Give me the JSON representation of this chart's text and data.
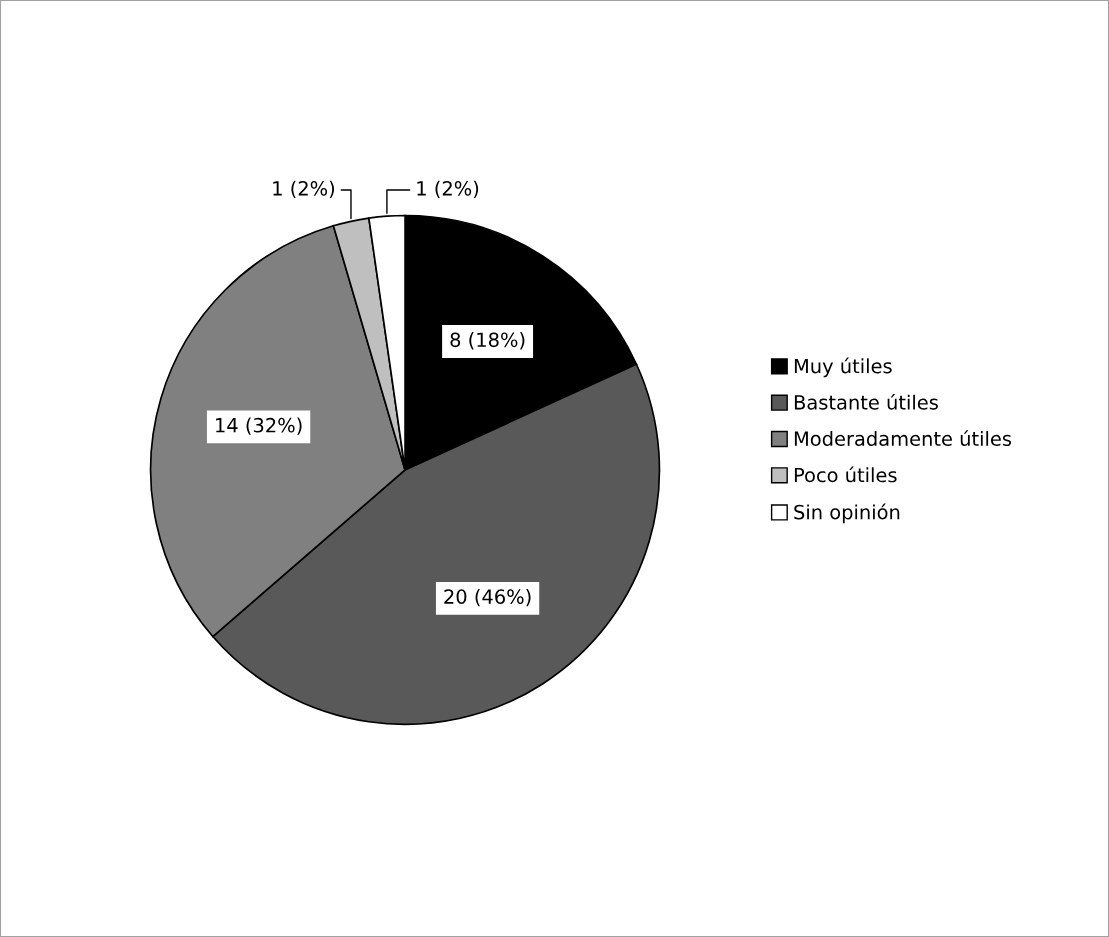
{
  "chart_data": {
    "type": "pie",
    "categories": [
      "Muy útiles",
      "Bastante útiles",
      "Moderadamente útiles",
      "Poco útiles",
      "Sin opinión"
    ],
    "values": [
      8,
      20,
      14,
      1,
      1
    ],
    "colors": [
      "#000000",
      "#595959",
      "#808080",
      "#bfbfbf",
      "#ffffff"
    ],
    "value_labels": [
      "8 (18%)",
      "20 (46%)",
      "14 (32%)",
      "1 (2%)",
      "1 (2%)"
    ],
    "legend": "right"
  }
}
